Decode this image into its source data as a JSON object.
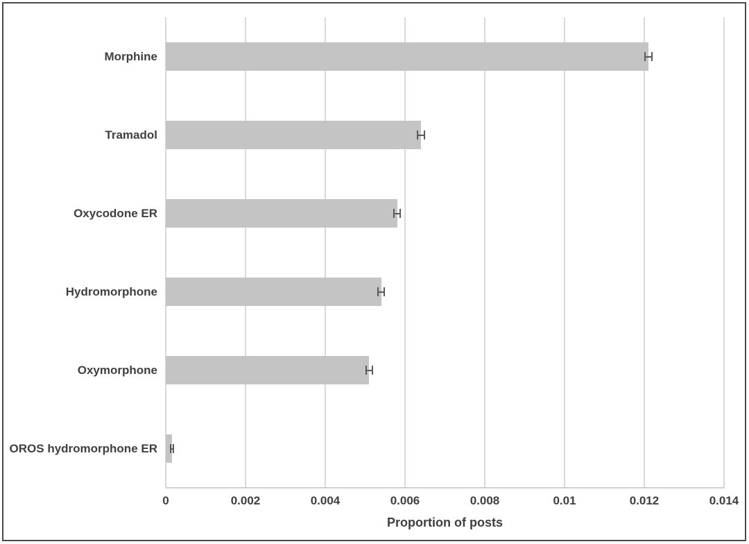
{
  "chart_data": {
    "type": "bar",
    "orientation": "horizontal",
    "title": "",
    "xlabel": "Proportion of posts",
    "ylabel": "",
    "categories": [
      "Morphine",
      "Tramadol",
      "Oxycodone ER",
      "Hydromorphone",
      "Oxymorphone",
      "OROS hydromorphone ER"
    ],
    "values": [
      0.0121,
      0.0064,
      0.0058,
      0.0054,
      0.0051,
      0.00015
    ],
    "errors": [
      0.0001,
      0.0001,
      0.0001,
      0.0001,
      0.0001,
      5e-05
    ],
    "xlim": [
      0,
      0.014
    ],
    "xticks": [
      0,
      0.002,
      0.004,
      0.006,
      0.008,
      0.01,
      0.012,
      0.014
    ],
    "xtick_labels": [
      "0",
      "0.002",
      "0.004",
      "0.006",
      "0.008",
      "0.01",
      "0.012",
      "0.014"
    ],
    "grid": "vertical-only",
    "legend": "none",
    "colors": {
      "bar_fill": "#c4c4c4",
      "error_bar": "#595959",
      "gridline": "#d9d9d9",
      "axis_line": "#cfcfcf",
      "text": "#3f3f3f",
      "frame_border": "#4a4a4a",
      "background": "#ffffff"
    }
  }
}
